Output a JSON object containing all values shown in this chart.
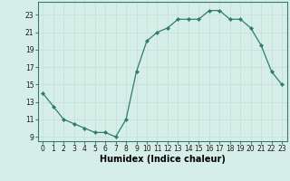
{
  "x": [
    0,
    1,
    2,
    3,
    4,
    5,
    6,
    7,
    8,
    9,
    10,
    11,
    12,
    13,
    14,
    15,
    16,
    17,
    18,
    19,
    20,
    21,
    22,
    23
  ],
  "y": [
    14.0,
    12.5,
    11.0,
    10.5,
    10.0,
    9.5,
    9.5,
    9.0,
    11.0,
    16.5,
    20.0,
    21.0,
    21.5,
    22.5,
    22.5,
    22.5,
    23.5,
    23.5,
    22.5,
    22.5,
    21.5,
    19.5,
    16.5,
    15.0
  ],
  "line_color": "#2d7d6e",
  "marker": "D",
  "marker_size": 2.0,
  "bg_color": "#d6eee8",
  "grid_color": "#c8e0d8",
  "xlabel": "Humidex (Indice chaleur)",
  "xlim": [
    -0.5,
    23.5
  ],
  "ylim": [
    8.5,
    24.5
  ],
  "yticks": [
    9,
    11,
    13,
    15,
    17,
    19,
    21,
    23
  ],
  "xticks": [
    0,
    1,
    2,
    3,
    4,
    5,
    6,
    7,
    8,
    9,
    10,
    11,
    12,
    13,
    14,
    15,
    16,
    17,
    18,
    19,
    20,
    21,
    22,
    23
  ],
  "tick_fontsize": 5.5,
  "xlabel_fontsize": 7.0,
  "spine_color": "#3d7a6e"
}
